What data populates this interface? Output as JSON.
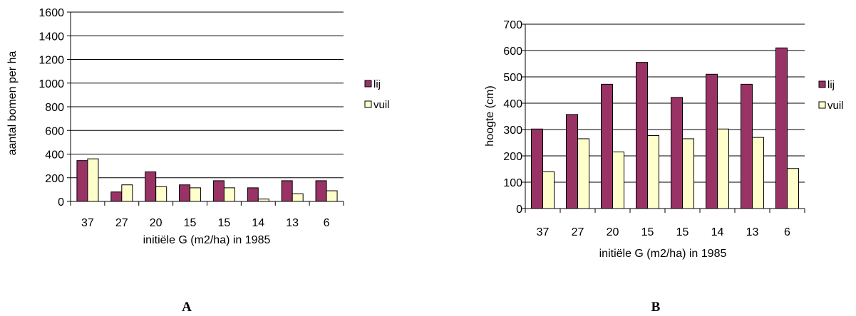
{
  "chart_data": [
    {
      "type": "bar",
      "panel_label": "A",
      "categories": [
        "37",
        "27",
        "20",
        "15",
        "15",
        "14",
        "13",
        "6"
      ],
      "series": [
        {
          "name": "lij",
          "values": [
            345,
            80,
            250,
            140,
            175,
            115,
            175,
            175
          ],
          "color": "#993366"
        },
        {
          "name": "vuil",
          "values": [
            360,
            140,
            125,
            115,
            115,
            20,
            65,
            90
          ],
          "color": "#ffffcc"
        }
      ],
      "xlabel": "initiële G (m2/ha) in 1985",
      "ylabel": "aantal bomen per ha",
      "ylim": [
        0,
        1600
      ],
      "yticks": [
        0,
        200,
        400,
        600,
        800,
        1000,
        1200,
        1400,
        1600
      ],
      "grid": true,
      "legend": "right"
    },
    {
      "type": "bar",
      "panel_label": "B",
      "categories": [
        "37",
        "27",
        "20",
        "15",
        "15",
        "14",
        "13",
        "6"
      ],
      "series": [
        {
          "name": "lij",
          "values": [
            302,
            357,
            472,
            555,
            422,
            510,
            472,
            610
          ],
          "color": "#993366"
        },
        {
          "name": "vuil",
          "values": [
            140,
            265,
            215,
            277,
            265,
            302,
            270,
            152
          ],
          "color": "#ffffcc"
        }
      ],
      "xlabel": "initiële G (m2/ha) in 1985",
      "ylabel": "hoogte (cm)",
      "ylim": [
        0,
        700
      ],
      "yticks": [
        0,
        100,
        200,
        300,
        400,
        500,
        600,
        700
      ],
      "grid": true,
      "legend": "right"
    }
  ]
}
